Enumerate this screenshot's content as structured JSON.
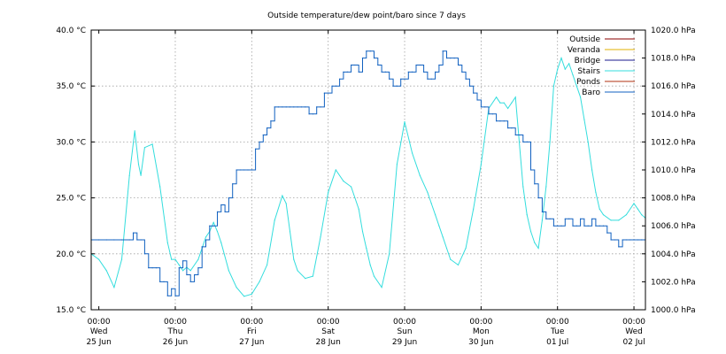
{
  "chart_data": {
    "type": "line",
    "title": "Outside temperature/dew point/baro since 7 days",
    "y_left": {
      "ticks": [
        "15.0 °C",
        "20.0 °C",
        "25.0 °C",
        "30.0 °C",
        "35.0 °C",
        "40.0 °C"
      ],
      "min": 15,
      "max": 40
    },
    "y_right": {
      "ticks": [
        "1000.0 hPa",
        "1002.0 hPa",
        "1004.0 hPa",
        "1006.0 hPa",
        "1008.0 hPa",
        "1010.0 hPa",
        "1012.0 hPa",
        "1014.0 hPa",
        "1016.0 hPa",
        "1018.0 hPa",
        "1020.0 hPa"
      ],
      "min": 1000,
      "max": 1020
    },
    "x_ticks": [
      {
        "time": "00:00",
        "day": "Wed",
        "date": "25 Jun"
      },
      {
        "time": "00:00",
        "day": "Thu",
        "date": "26 Jun"
      },
      {
        "time": "00:00",
        "day": "Fri",
        "date": "27 Jun"
      },
      {
        "time": "00:00",
        "day": "Sat",
        "date": "28 Jun"
      },
      {
        "time": "00:00",
        "day": "Sun",
        "date": "29 Jun"
      },
      {
        "time": "00:00",
        "day": "Mon",
        "date": "30 Jun"
      },
      {
        "time": "00:00",
        "day": "Tue",
        "date": "01 Jul"
      },
      {
        "time": "00:00",
        "day": "Wed",
        "date": "02 Jul"
      }
    ],
    "x_range_days": [
      -0.1,
      7.15
    ],
    "grid": true,
    "legend_position": "top-right",
    "legend": [
      {
        "name": "Outside",
        "color": "#8b0000"
      },
      {
        "name": "Veranda",
        "color": "#e0b000"
      },
      {
        "name": "Bridge",
        "color": "#1a1a8c"
      },
      {
        "name": "Stairs",
        "color": "#33dddd"
      },
      {
        "name": "Ponds",
        "color": "#b03010"
      },
      {
        "name": "Baro",
        "color": "#1060c0"
      }
    ],
    "series": [
      {
        "name": "Stairs",
        "axis": "left",
        "color": "#33dddd",
        "x_days": [
          -0.1,
          0.0,
          0.1,
          0.2,
          0.3,
          0.4,
          0.47,
          0.52,
          0.55,
          0.6,
          0.7,
          0.8,
          0.9,
          0.95,
          1.0,
          1.05,
          1.1,
          1.15,
          1.2,
          1.3,
          1.4,
          1.45,
          1.5,
          1.55,
          1.6,
          1.7,
          1.8,
          1.9,
          2.0,
          2.1,
          2.2,
          2.3,
          2.4,
          2.45,
          2.5,
          2.55,
          2.6,
          2.7,
          2.8,
          2.9,
          3.0,
          3.1,
          3.2,
          3.3,
          3.4,
          3.45,
          3.5,
          3.55,
          3.6,
          3.7,
          3.8,
          3.9,
          4.0,
          4.1,
          4.2,
          4.3,
          4.35,
          4.4,
          4.45,
          4.5,
          4.55,
          4.6,
          4.7,
          4.8,
          4.9,
          5.0,
          5.1,
          5.2,
          5.25,
          5.3,
          5.35,
          5.4,
          5.45,
          5.5,
          5.55,
          5.6,
          5.65,
          5.7,
          5.75,
          5.8,
          5.85,
          5.9,
          5.95,
          6.0,
          6.05,
          6.1,
          6.15,
          6.2,
          6.25,
          6.3,
          6.35,
          6.4,
          6.45,
          6.5,
          6.55,
          6.6,
          6.7,
          6.8,
          6.9,
          7.0,
          7.05,
          7.1,
          7.15
        ],
        "values": [
          20.0,
          19.5,
          18.5,
          17.0,
          19.5,
          27.0,
          31.0,
          28.0,
          27.0,
          29.5,
          29.8,
          26.0,
          21.0,
          19.5,
          19.5,
          19.0,
          18.5,
          18.8,
          18.5,
          19.5,
          21.5,
          22.0,
          22.8,
          22.0,
          21.0,
          18.5,
          17.0,
          16.2,
          16.4,
          17.5,
          19.0,
          23.0,
          25.2,
          24.5,
          22.0,
          19.5,
          18.5,
          17.8,
          18.0,
          21.5,
          25.5,
          27.5,
          26.5,
          26.0,
          24.0,
          22.0,
          20.5,
          19.0,
          18.0,
          17.0,
          20.0,
          28.0,
          31.8,
          29.0,
          27.0,
          25.5,
          24.5,
          23.5,
          22.5,
          21.5,
          20.5,
          19.5,
          19.0,
          20.5,
          24.0,
          28.0,
          33.0,
          34.0,
          33.5,
          33.5,
          33.0,
          33.5,
          34.0,
          30.0,
          26.0,
          23.5,
          22.0,
          21.0,
          20.5,
          23.0,
          26.0,
          30.0,
          35.0,
          36.5,
          37.5,
          36.5,
          37.0,
          36.0,
          35.0,
          34.0,
          32.0,
          30.0,
          27.5,
          25.5,
          24.0,
          23.5,
          23.0,
          23.0,
          23.5,
          24.5,
          24.0,
          23.5,
          23.2
        ]
      },
      {
        "name": "Baro",
        "axis": "right",
        "color": "#1060c0",
        "x_days": [
          -0.1,
          0.0,
          0.1,
          0.2,
          0.3,
          0.4,
          0.45,
          0.5,
          0.55,
          0.6,
          0.65,
          0.7,
          0.75,
          0.8,
          0.85,
          0.9,
          0.95,
          1.0,
          1.05,
          1.1,
          1.15,
          1.2,
          1.25,
          1.3,
          1.35,
          1.4,
          1.45,
          1.5,
          1.55,
          1.6,
          1.65,
          1.7,
          1.75,
          1.8,
          1.85,
          1.9,
          1.95,
          2.0,
          2.05,
          2.1,
          2.15,
          2.2,
          2.25,
          2.3,
          2.35,
          2.4,
          2.45,
          2.5,
          2.55,
          2.6,
          2.65,
          2.7,
          2.75,
          2.8,
          2.85,
          2.9,
          2.95,
          3.0,
          3.05,
          3.1,
          3.15,
          3.2,
          3.25,
          3.3,
          3.35,
          3.4,
          3.45,
          3.5,
          3.55,
          3.6,
          3.65,
          3.7,
          3.75,
          3.8,
          3.85,
          3.9,
          3.95,
          4.0,
          4.05,
          4.1,
          4.15,
          4.2,
          4.25,
          4.3,
          4.35,
          4.4,
          4.45,
          4.5,
          4.55,
          4.6,
          4.65,
          4.7,
          4.75,
          4.8,
          4.85,
          4.9,
          4.95,
          5.0,
          5.05,
          5.1,
          5.15,
          5.2,
          5.25,
          5.3,
          5.35,
          5.4,
          5.45,
          5.5,
          5.55,
          5.6,
          5.65,
          5.7,
          5.75,
          5.8,
          5.85,
          5.9,
          5.95,
          6.0,
          6.05,
          6.1,
          6.15,
          6.2,
          6.25,
          6.3,
          6.35,
          6.4,
          6.45,
          6.5,
          6.55,
          6.6,
          6.65,
          6.7,
          6.75,
          6.8,
          6.85,
          6.9,
          6.95,
          7.0,
          7.05,
          7.1,
          7.15
        ],
        "values": [
          1005.0,
          1005.0,
          1005.0,
          1005.0,
          1005.0,
          1005.0,
          1005.5,
          1005.0,
          1005.0,
          1004.0,
          1003.0,
          1003.0,
          1003.0,
          1002.0,
          1002.0,
          1001.0,
          1001.5,
          1001.0,
          1003.0,
          1003.5,
          1002.5,
          1002.0,
          1002.5,
          1003.0,
          1004.5,
          1005.0,
          1006.0,
          1006.0,
          1007.0,
          1007.5,
          1007.0,
          1008.0,
          1009.0,
          1010.0,
          1010.0,
          1010.0,
          1010.0,
          1010.0,
          1011.5,
          1012.0,
          1012.5,
          1013.0,
          1013.5,
          1014.5,
          1014.5,
          1014.5,
          1014.5,
          1014.5,
          1014.5,
          1014.5,
          1014.5,
          1014.5,
          1014.0,
          1014.0,
          1014.5,
          1014.5,
          1015.5,
          1015.5,
          1016.0,
          1016.0,
          1016.5,
          1017.0,
          1017.0,
          1017.5,
          1017.5,
          1017.0,
          1018.0,
          1018.5,
          1018.5,
          1018.0,
          1017.5,
          1017.0,
          1017.0,
          1016.5,
          1016.0,
          1016.0,
          1016.5,
          1016.5,
          1017.0,
          1017.0,
          1017.5,
          1017.5,
          1017.0,
          1016.5,
          1016.5,
          1017.0,
          1017.5,
          1018.5,
          1018.0,
          1018.0,
          1018.0,
          1017.5,
          1017.0,
          1016.5,
          1016.0,
          1015.5,
          1015.0,
          1014.5,
          1014.5,
          1014.0,
          1014.0,
          1013.5,
          1013.5,
          1013.5,
          1013.0,
          1013.0,
          1012.5,
          1012.5,
          1012.0,
          1012.0,
          1010.0,
          1009.0,
          1008.0,
          1007.0,
          1006.5,
          1006.5,
          1006.0,
          1006.0,
          1006.0,
          1006.5,
          1006.5,
          1006.0,
          1006.0,
          1006.5,
          1006.0,
          1006.0,
          1006.5,
          1006.0,
          1006.0,
          1006.0,
          1005.5,
          1005.0,
          1005.0,
          1004.5,
          1005.0,
          1005.0,
          1005.0,
          1005.0,
          1005.0,
          1005.0,
          1005.0
        ]
      }
    ]
  }
}
